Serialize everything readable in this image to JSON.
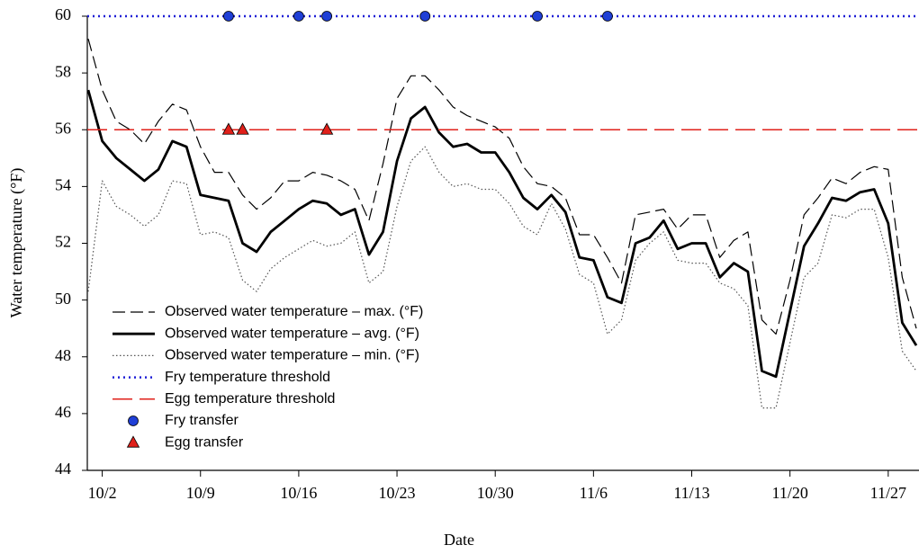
{
  "chart_data": {
    "type": "line",
    "xlabel": "Date",
    "ylabel": "Water temperature (°F)",
    "categories": [
      null,
      "10/2",
      null,
      null,
      null,
      null,
      null,
      null,
      "10/9",
      null,
      null,
      null,
      null,
      null,
      null,
      "10/16",
      null,
      null,
      null,
      null,
      null,
      null,
      "10/23",
      null,
      null,
      null,
      null,
      null,
      null,
      "10/30",
      null,
      null,
      null,
      null,
      null,
      null,
      "11/6",
      null,
      null,
      null,
      null,
      null,
      null,
      "11/13",
      null,
      null,
      null,
      null,
      null,
      null,
      "11/20",
      null,
      null,
      null,
      null,
      null,
      null,
      "11/27",
      null,
      null
    ],
    "ylim": [
      44,
      60
    ],
    "yticks": [
      44,
      46,
      48,
      50,
      52,
      54,
      56,
      58,
      60
    ],
    "series": [
      {
        "name": "Observed water temperature – max. (°F)",
        "color": "#000000",
        "style": "dashed",
        "values": [
          59.2,
          57.4,
          56.3,
          56.0,
          55.5,
          56.3,
          56.9,
          56.7,
          55.4,
          54.5,
          54.5,
          53.7,
          53.2,
          53.6,
          54.2,
          54.2,
          54.5,
          54.4,
          54.2,
          53.9,
          52.8,
          54.8,
          57.1,
          57.9,
          57.9,
          57.4,
          56.8,
          56.5,
          56.3,
          56.1,
          55.7,
          54.7,
          54.1,
          54.0,
          53.6,
          52.3,
          52.3,
          51.5,
          50.6,
          53.0,
          53.1,
          53.2,
          52.5,
          53.0,
          53.0,
          51.5,
          52.1,
          52.4,
          49.3,
          48.8,
          50.7,
          53.0,
          53.6,
          54.3,
          54.1,
          54.5,
          54.7,
          54.6,
          50.8,
          49.0
        ]
      },
      {
        "name": "Observed water temperature – avg. (°F)",
        "color": "#000000",
        "style": "solid",
        "values": [
          57.4,
          55.6,
          55.0,
          54.6,
          54.2,
          54.6,
          55.6,
          55.4,
          53.7,
          53.6,
          53.5,
          52.0,
          51.7,
          52.4,
          52.8,
          53.2,
          53.5,
          53.4,
          53.0,
          53.2,
          51.6,
          52.4,
          54.9,
          56.4,
          56.8,
          55.9,
          55.4,
          55.5,
          55.2,
          55.2,
          54.5,
          53.6,
          53.2,
          53.7,
          53.1,
          51.5,
          51.4,
          50.1,
          49.9,
          52.0,
          52.2,
          52.8,
          51.8,
          52.0,
          52.0,
          50.8,
          51.3,
          51.0,
          47.5,
          47.3,
          49.6,
          51.9,
          52.7,
          53.6,
          53.5,
          53.8,
          53.9,
          52.7,
          49.2,
          48.4
        ]
      },
      {
        "name": "Observed water temperature – min. (°F)",
        "color": "#555555",
        "style": "dotted",
        "values": [
          50.3,
          54.2,
          53.3,
          53.0,
          52.6,
          53.0,
          54.2,
          54.1,
          52.3,
          52.4,
          52.2,
          50.7,
          50.3,
          51.1,
          51.5,
          51.8,
          52.1,
          51.9,
          52.0,
          52.4,
          50.6,
          51.0,
          53.3,
          54.9,
          55.4,
          54.5,
          54.0,
          54.1,
          53.9,
          53.9,
          53.4,
          52.6,
          52.3,
          53.4,
          52.5,
          50.9,
          50.6,
          48.8,
          49.3,
          51.4,
          52.0,
          52.4,
          51.4,
          51.3,
          51.3,
          50.6,
          50.4,
          49.8,
          46.2,
          46.2,
          48.5,
          50.8,
          51.3,
          53.0,
          52.9,
          53.2,
          53.2,
          51.5,
          48.2,
          47.5
        ]
      },
      {
        "name": "Fry temperature threshold",
        "color": "#1f1fd6",
        "style": "threshold-dotted",
        "value": 60
      },
      {
        "name": "Egg temperature threshold",
        "color": "#e0201a",
        "style": "threshold-dashed",
        "value": 56
      },
      {
        "name": "Fry transfer",
        "color": "#1f3fd6",
        "style": "circle",
        "values": [
          null,
          null,
          null,
          null,
          null,
          null,
          null,
          null,
          null,
          null,
          60,
          null,
          null,
          null,
          null,
          60,
          null,
          60,
          null,
          null,
          null,
          null,
          null,
          null,
          60,
          null,
          null,
          null,
          null,
          null,
          null,
          null,
          60,
          null,
          null,
          null,
          null,
          60,
          null,
          null,
          null,
          null,
          null,
          null,
          null,
          null,
          null,
          null,
          null,
          null,
          null,
          null,
          null,
          null,
          null,
          null,
          null,
          null,
          null,
          null
        ]
      },
      {
        "name": "Egg transfer",
        "color": "#e0201a",
        "style": "triangle",
        "values": [
          null,
          null,
          null,
          null,
          null,
          null,
          null,
          null,
          null,
          null,
          56,
          56,
          null,
          null,
          null,
          null,
          null,
          56,
          null,
          null,
          null,
          null,
          null,
          null,
          null,
          null,
          null,
          null,
          null,
          null,
          null,
          null,
          null,
          null,
          null,
          null,
          null,
          null,
          null,
          null,
          null,
          null,
          null,
          null,
          null,
          null,
          null,
          null,
          null,
          null,
          null,
          null,
          null,
          null,
          null,
          null,
          null,
          null,
          null,
          null
        ]
      }
    ]
  }
}
